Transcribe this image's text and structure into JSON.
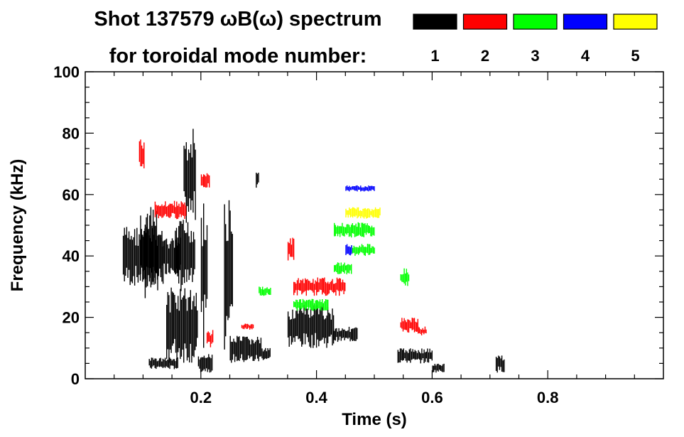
{
  "chart_data": {
    "type": "heatmap",
    "title_line1": "Shot 137579 ωB(ω) spectrum",
    "title_line2": "for toroidal mode number:",
    "xlabel": "Time (s)",
    "ylabel": "Frequency (kHz)",
    "xlim": [
      0.0,
      1.0
    ],
    "ylim": [
      0,
      100
    ],
    "x_ticks": [
      0.2,
      0.4,
      0.6,
      0.8
    ],
    "x_tick_labels": [
      "0.2",
      "0.4",
      "0.6",
      "0.8"
    ],
    "y_ticks": [
      0,
      20,
      40,
      60,
      80,
      100
    ],
    "y_tick_labels": [
      "0",
      "20",
      "40",
      "60",
      "80",
      "100"
    ],
    "legend": [
      {
        "label": "1",
        "color": "#000000"
      },
      {
        "label": "2",
        "color": "#ff0000"
      },
      {
        "label": "3",
        "color": "#00ff00"
      },
      {
        "label": "4",
        "color": "#0000ff"
      },
      {
        "label": "5",
        "color": "#ffff00"
      }
    ],
    "features": [
      {
        "mode": 1,
        "t0": 0.065,
        "t1": 0.135,
        "f0": 30,
        "f1": 50
      },
      {
        "mode": 1,
        "t0": 0.095,
        "t1": 0.125,
        "f0": 26,
        "f1": 56
      },
      {
        "mode": 1,
        "t0": 0.13,
        "t1": 0.165,
        "f0": 34,
        "f1": 46
      },
      {
        "mode": 1,
        "t0": 0.155,
        "t1": 0.19,
        "f0": 28,
        "f1": 52
      },
      {
        "mode": 1,
        "t0": 0.17,
        "t1": 0.19,
        "f0": 50,
        "f1": 82
      },
      {
        "mode": 1,
        "t0": 0.14,
        "t1": 0.195,
        "f0": 5,
        "f1": 30
      },
      {
        "mode": 1,
        "t0": 0.11,
        "t1": 0.16,
        "f0": 3,
        "f1": 7
      },
      {
        "mode": 1,
        "t0": 0.195,
        "t1": 0.22,
        "f0": 2,
        "f1": 8
      },
      {
        "mode": 1,
        "t0": 0.2,
        "t1": 0.21,
        "f0": 10,
        "f1": 60
      },
      {
        "mode": 1,
        "t0": 0.25,
        "t1": 0.305,
        "f0": 5,
        "f1": 14
      },
      {
        "mode": 1,
        "t0": 0.305,
        "t1": 0.32,
        "f0": 6,
        "f1": 10
      },
      {
        "mode": 1,
        "t0": 0.35,
        "t1": 0.43,
        "f0": 10,
        "f1": 24
      },
      {
        "mode": 1,
        "t0": 0.43,
        "t1": 0.47,
        "f0": 12,
        "f1": 17
      },
      {
        "mode": 1,
        "t0": 0.54,
        "t1": 0.6,
        "f0": 5,
        "f1": 10
      },
      {
        "mode": 1,
        "t0": 0.6,
        "t1": 0.62,
        "f0": 2,
        "f1": 5
      },
      {
        "mode": 1,
        "t0": 0.71,
        "t1": 0.725,
        "f0": 2,
        "f1": 8
      },
      {
        "mode": 1,
        "t0": 0.295,
        "t1": 0.3,
        "f0": 62,
        "f1": 68
      },
      {
        "mode": 1,
        "t0": 0.24,
        "t1": 0.255,
        "f0": 6,
        "f1": 60
      },
      {
        "mode": 2,
        "t0": 0.093,
        "t1": 0.102,
        "f0": 68,
        "f1": 78
      },
      {
        "mode": 2,
        "t0": 0.12,
        "t1": 0.175,
        "f0": 52,
        "f1": 58
      },
      {
        "mode": 2,
        "t0": 0.2,
        "t1": 0.215,
        "f0": 62,
        "f1": 67
      },
      {
        "mode": 2,
        "t0": 0.21,
        "t1": 0.22,
        "f0": 10,
        "f1": 16
      },
      {
        "mode": 2,
        "t0": 0.27,
        "t1": 0.29,
        "f0": 16,
        "f1": 18
      },
      {
        "mode": 2,
        "t0": 0.35,
        "t1": 0.36,
        "f0": 38,
        "f1": 46
      },
      {
        "mode": 2,
        "t0": 0.36,
        "t1": 0.45,
        "f0": 27,
        "f1": 33
      },
      {
        "mode": 2,
        "t0": 0.545,
        "t1": 0.575,
        "f0": 15,
        "f1": 20
      },
      {
        "mode": 2,
        "t0": 0.575,
        "t1": 0.59,
        "f0": 14,
        "f1": 17
      },
      {
        "mode": 3,
        "t0": 0.43,
        "t1": 0.5,
        "f0": 46,
        "f1": 51
      },
      {
        "mode": 3,
        "t0": 0.43,
        "t1": 0.46,
        "f0": 34,
        "f1": 38
      },
      {
        "mode": 3,
        "t0": 0.46,
        "t1": 0.5,
        "f0": 40,
        "f1": 44
      },
      {
        "mode": 3,
        "t0": 0.36,
        "t1": 0.42,
        "f0": 22,
        "f1": 26
      },
      {
        "mode": 3,
        "t0": 0.545,
        "t1": 0.56,
        "f0": 30,
        "f1": 36
      },
      {
        "mode": 3,
        "t0": 0.3,
        "t1": 0.32,
        "f0": 27,
        "f1": 30
      },
      {
        "mode": 4,
        "t0": 0.45,
        "t1": 0.5,
        "f0": 61,
        "f1": 63
      },
      {
        "mode": 4,
        "t0": 0.45,
        "t1": 0.46,
        "f0": 40,
        "f1": 44
      },
      {
        "mode": 5,
        "t0": 0.45,
        "t1": 0.51,
        "f0": 52,
        "f1": 56
      }
    ]
  }
}
